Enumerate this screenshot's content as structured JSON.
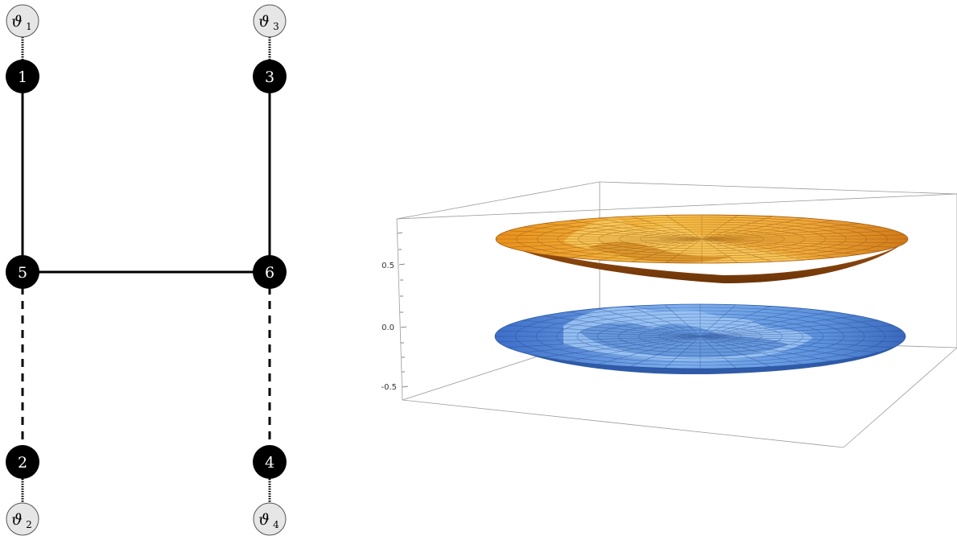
{
  "graph": {
    "nodes": [
      {
        "id": "1",
        "label": "1"
      },
      {
        "id": "2",
        "label": "2"
      },
      {
        "id": "3",
        "label": "3"
      },
      {
        "id": "4",
        "label": "4"
      },
      {
        "id": "5",
        "label": "5"
      },
      {
        "id": "6",
        "label": "6"
      }
    ],
    "thetas": [
      {
        "id": "t1",
        "symbol": "ϑ",
        "sub": "1",
        "attached_to": "1"
      },
      {
        "id": "t2",
        "symbol": "ϑ",
        "sub": "2",
        "attached_to": "2"
      },
      {
        "id": "t3",
        "symbol": "ϑ",
        "sub": "3",
        "attached_to": "3"
      },
      {
        "id": "t4",
        "symbol": "ϑ",
        "sub": "4",
        "attached_to": "4"
      }
    ],
    "edges": [
      {
        "from": "1",
        "to": "5",
        "style": "solid"
      },
      {
        "from": "5",
        "to": "6",
        "style": "solid"
      },
      {
        "from": "3",
        "to": "6",
        "style": "solid"
      },
      {
        "from": "5",
        "to": "2",
        "style": "dashed"
      },
      {
        "from": "6",
        "to": "4",
        "style": "dashed"
      }
    ],
    "colors": {
      "node_fill": "#000000",
      "node_text": "#ffffff",
      "theta_fill": "#e6e6e6",
      "theta_stroke": "#555555"
    }
  },
  "plot3d": {
    "z_ticks": [
      "0.5",
      "0.0",
      "-0.5"
    ],
    "surfaces": [
      {
        "name": "upper",
        "color": "#f0a028"
      },
      {
        "name": "lower",
        "color": "#4f86d8"
      }
    ]
  }
}
